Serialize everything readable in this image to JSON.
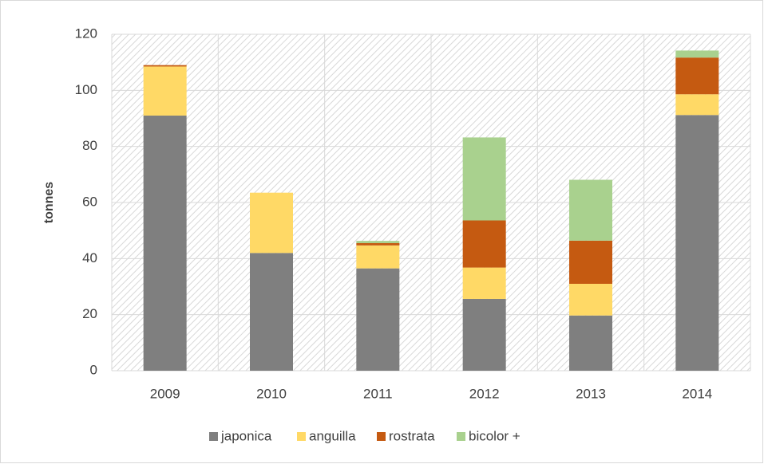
{
  "chart_data": {
    "type": "stacked_bar",
    "y_label": "tonnes",
    "categories": [
      "2009",
      "2010",
      "2011",
      "2012",
      "2013",
      "2014"
    ],
    "series": [
      {
        "name": "japonica",
        "color": "#7f7f7f",
        "values": [
          91,
          42,
          36.5,
          25.6,
          19.7,
          91.2
        ]
      },
      {
        "name": "anguilla",
        "color": "#ffd966",
        "values": [
          17.5,
          21.5,
          8.2,
          11.2,
          11.3,
          7.4
        ]
      },
      {
        "name": "rostrata",
        "color": "#c55a11",
        "values": [
          0.5,
          0,
          0.8,
          16.8,
          15.4,
          13.1
        ]
      },
      {
        "name": "bicolor +",
        "color": "#a9d18e",
        "values": [
          0,
          0,
          0.8,
          29.6,
          21.7,
          2.5
        ]
      }
    ],
    "ylim": [
      0,
      120
    ],
    "yticks": [
      0,
      20,
      40,
      60,
      80,
      100,
      120
    ],
    "grid": true,
    "legend": "bottom"
  }
}
